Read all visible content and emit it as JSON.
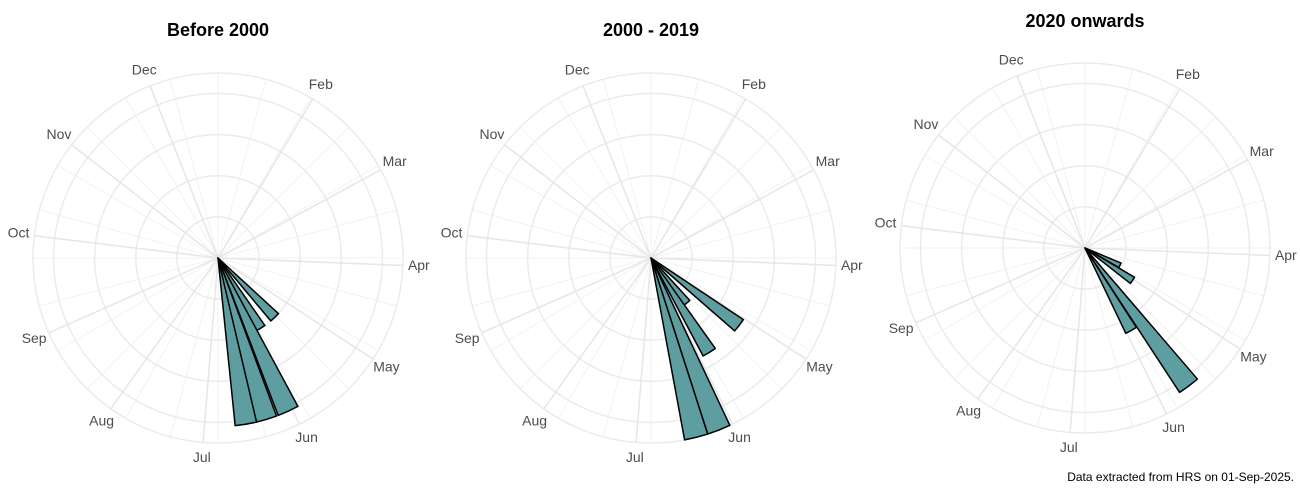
{
  "chart_data": [
    {
      "type": "polar_bar",
      "title": "Before 2000",
      "color": "#5f9ea0",
      "xlim": [
        1,
        12.7
      ],
      "xticks": [
        {
          "value": 2,
          "label": "Feb"
        },
        {
          "value": 3,
          "label": "Mar"
        },
        {
          "value": 4,
          "label": "Apr"
        },
        {
          "value": 5,
          "label": "May"
        },
        {
          "value": 6,
          "label": "Jun"
        },
        {
          "value": 7,
          "label": "Jul"
        },
        {
          "value": 8,
          "label": "Aug"
        },
        {
          "value": 9,
          "label": "Sep"
        },
        {
          "value": 10,
          "label": "Oct"
        },
        {
          "value": 11,
          "label": "Nov"
        },
        {
          "value": 12,
          "label": "Dec"
        }
      ],
      "ylim": [
        0,
        4.5
      ],
      "yticks": [
        1,
        2,
        3,
        4
      ],
      "grid": true,
      "x": [
        5.43,
        5.84,
        6.05,
        6.31,
        6.54
      ],
      "values": [
        2.0,
        2.0,
        4.1,
        4.1,
        4.1
      ]
    },
    {
      "type": "polar_bar",
      "title": "2000 - 2019",
      "color": "#5f9ea0",
      "xlim": [
        1,
        12.7
      ],
      "xticks": [
        {
          "value": 2,
          "label": "Feb"
        },
        {
          "value": 3,
          "label": "Mar"
        },
        {
          "value": 4,
          "label": "Apr"
        },
        {
          "value": 5,
          "label": "May"
        },
        {
          "value": 6,
          "label": "Jun"
        },
        {
          "value": 7,
          "label": "Jul"
        },
        {
          "value": 8,
          "label": "Aug"
        },
        {
          "value": 9,
          "label": "Sep"
        },
        {
          "value": 10,
          "label": "Oct"
        },
        {
          "value": 11,
          "label": "Nov"
        },
        {
          "value": 12,
          "label": "Dec"
        }
      ],
      "ylim": [
        0,
        4.5
      ],
      "yticks": [
        1,
        2,
        3,
        4
      ],
      "grid": true,
      "x": [
        5.14,
        5.59,
        5.82,
        6.15,
        6.39
      ],
      "values": [
        2.7,
        1.4,
        2.7,
        4.5,
        4.5
      ]
    },
    {
      "type": "polar_bar",
      "title": "2020 onwards",
      "color": "#5f9ea0",
      "xlim": [
        1,
        12.7
      ],
      "xticks": [
        {
          "value": 2,
          "label": "Feb"
        },
        {
          "value": 3,
          "label": "Mar"
        },
        {
          "value": 4,
          "label": "Apr"
        },
        {
          "value": 5,
          "label": "May"
        },
        {
          "value": 6,
          "label": "Jun"
        },
        {
          "value": 7,
          "label": "Jul"
        },
        {
          "value": 8,
          "label": "Aug"
        },
        {
          "value": 9,
          "label": "Sep"
        },
        {
          "value": 10,
          "label": "Oct"
        },
        {
          "value": 11,
          "label": "Nov"
        },
        {
          "value": 12,
          "label": "Dec"
        }
      ],
      "ylim": [
        0,
        4.5
      ],
      "yticks": [
        1,
        2,
        3,
        4
      ],
      "grid": true,
      "x": [
        4.78,
        5.04,
        5.65,
        5.9
      ],
      "values": [
        0.95,
        1.4,
        4.2,
        2.3
      ]
    }
  ],
  "caption": "Data extracted from HRS on 01-Sep-2025."
}
